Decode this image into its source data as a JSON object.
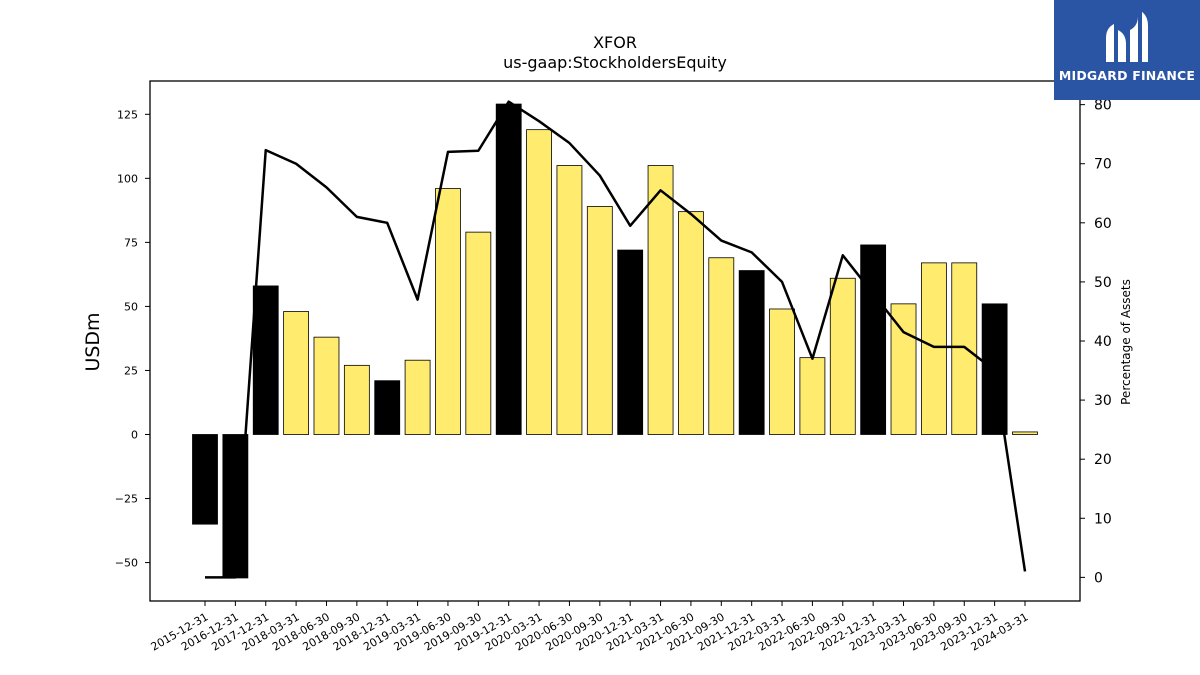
{
  "brand": {
    "name": "MIDGARD FINANCE",
    "icon": "midgard-logo-icon",
    "color": "#2a55a4"
  },
  "chart_data": {
    "type": "bar+line",
    "title": "XFOR",
    "subtitle": "us-gaap:StockholdersEquity",
    "ylabel": "USDm",
    "y2label": "Percentage of Assets",
    "ylim": [
      -65,
      138
    ],
    "y2lim": [
      -4,
      84
    ],
    "yticks": [
      -50,
      -25,
      0,
      25,
      50,
      75,
      100,
      125
    ],
    "y2ticks": [
      0,
      10,
      20,
      30,
      40,
      50,
      60,
      70,
      80
    ],
    "categories": [
      "2015-12-31",
      "2016-12-31",
      "2017-12-31",
      "2018-03-31",
      "2018-06-30",
      "2018-09-30",
      "2018-12-31",
      "2019-03-31",
      "2019-06-30",
      "2019-09-30",
      "2019-12-31",
      "2020-03-31",
      "2020-06-30",
      "2020-09-30",
      "2020-12-31",
      "2021-03-31",
      "2021-06-30",
      "2021-09-30",
      "2021-12-31",
      "2022-03-31",
      "2022-06-30",
      "2022-09-30",
      "2022-12-31",
      "2023-03-31",
      "2023-06-30",
      "2023-09-30",
      "2023-12-31",
      "2024-03-31"
    ],
    "series": [
      {
        "type": "bar",
        "values": [
          -35,
          -56,
          58,
          48,
          38,
          27,
          21,
          29,
          96,
          79,
          129,
          119,
          105,
          89,
          72,
          105,
          87,
          69,
          64,
          49,
          30,
          61,
          74,
          51,
          67,
          67,
          51,
          1
        ],
        "annual_color": "#000000",
        "quarterly_color": "#ffec6e"
      },
      {
        "type": "line",
        "axis": "right",
        "color": "#000000",
        "values": [
          0,
          0,
          72.3,
          70,
          66,
          61,
          60,
          47,
          72,
          72.2,
          80.5,
          77.2,
          73.5,
          68,
          59.5,
          65.5,
          61.5,
          57,
          55,
          50,
          37,
          54.5,
          48,
          41.5,
          39,
          39,
          35,
          1
        ]
      }
    ],
    "annual_flags": [
      true,
      true,
      true,
      false,
      false,
      false,
      true,
      false,
      false,
      false,
      true,
      false,
      false,
      false,
      true,
      false,
      false,
      false,
      true,
      false,
      false,
      false,
      true,
      false,
      false,
      false,
      true,
      false
    ],
    "grid": false,
    "legend": "none"
  }
}
